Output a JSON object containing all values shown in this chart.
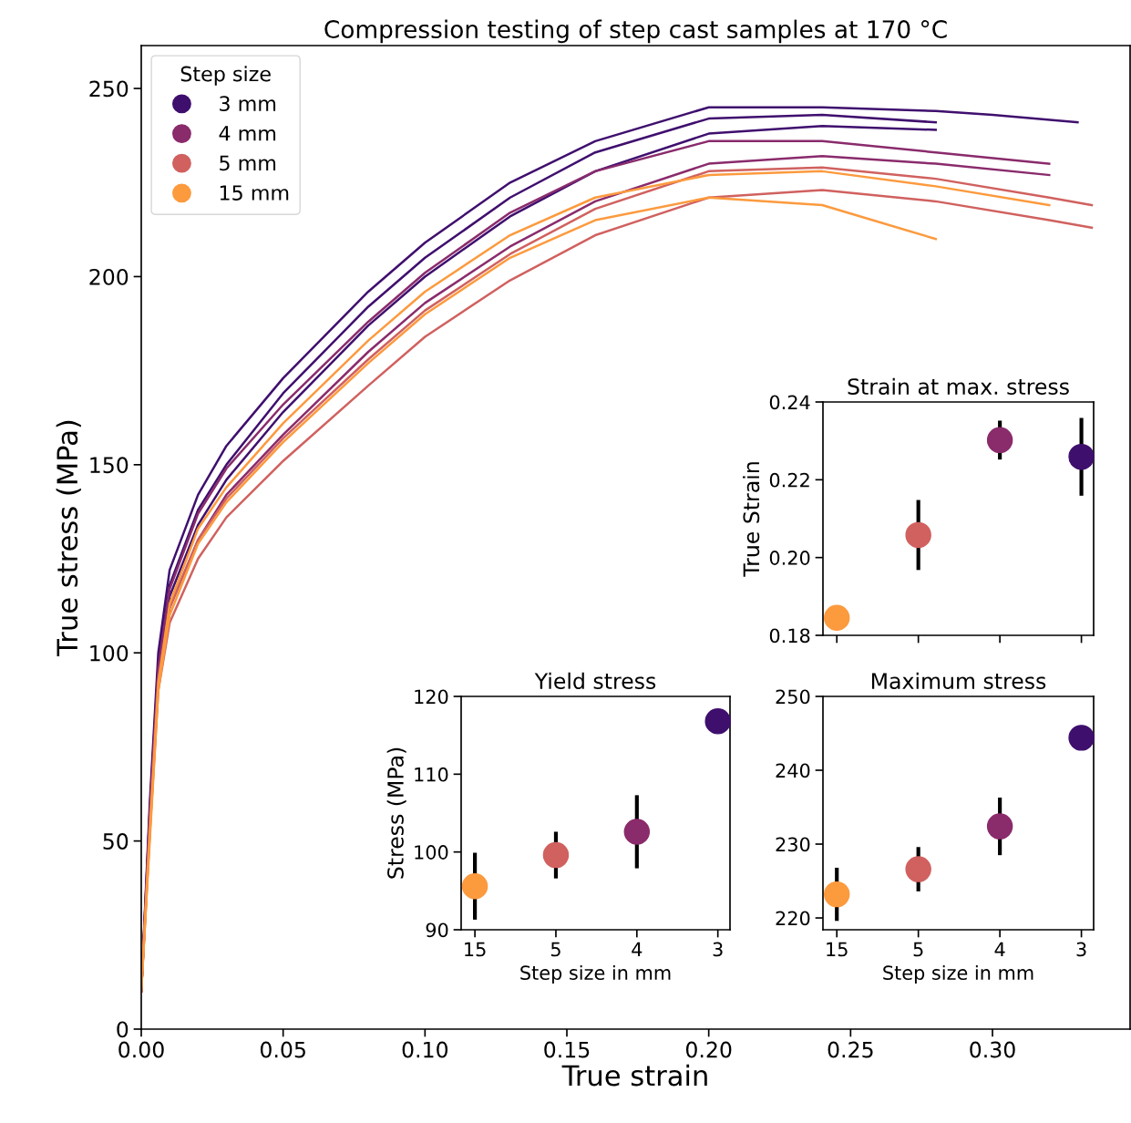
{
  "chart_data": [
    {
      "type": "line",
      "title": "Compression testing of step cast samples at 170 °C",
      "xlabel": "True strain",
      "ylabel": "True stress (MPa)",
      "legend_title": "Step size",
      "legend": "top left",
      "marker": "none",
      "line_style": "solid",
      "grid": false,
      "xlim": [
        0,
        0.3485
      ],
      "ylim": [
        0,
        261.4
      ],
      "xticks": [
        {
          "value": 0,
          "label": "0.00"
        },
        {
          "value": 0.05,
          "label": "0.05"
        },
        {
          "value": 0.1,
          "label": "0.10"
        },
        {
          "value": 0.15,
          "label": "0.15"
        },
        {
          "value": 0.2,
          "label": "0.20"
        },
        {
          "value": 0.25,
          "label": "0.25"
        },
        {
          "value": 0.3,
          "label": "0.30"
        }
      ],
      "yticks": [
        0,
        50,
        100,
        150,
        200,
        250
      ],
      "series": [
        {
          "name": "3 mm",
          "color": "#3f0f6e",
          "x": [
            0,
            0.003,
            0.006,
            0.01,
            0.02,
            0.03,
            0.05,
            0.08,
            0.1,
            0.13,
            0.16,
            0.2,
            0.24,
            0.28,
            0.3,
            0.33
          ],
          "values": [
            10,
            60,
            100,
            122,
            142,
            155,
            173,
            196,
            209,
            225,
            236,
            245,
            245,
            244,
            243,
            241
          ]
        },
        {
          "color": "#3f0f6e",
          "x": [
            0,
            0.003,
            0.006,
            0.01,
            0.02,
            0.03,
            0.05,
            0.08,
            0.1,
            0.13,
            0.16,
            0.2,
            0.24,
            0.28
          ],
          "values": [
            10,
            58,
            97,
            118,
            138,
            150,
            169,
            192,
            205,
            221,
            233,
            242,
            243,
            241
          ]
        },
        {
          "color": "#3f0f6e",
          "x": [
            0,
            0.003,
            0.006,
            0.01,
            0.02,
            0.03,
            0.05,
            0.08,
            0.1,
            0.13,
            0.16,
            0.2,
            0.24,
            0.28
          ],
          "values": [
            10,
            55,
            95,
            115,
            134,
            146,
            164,
            187,
            200,
            216,
            228,
            238,
            240,
            239
          ]
        },
        {
          "name": "4 mm",
          "color": "#8a2b6c",
          "x": [
            0,
            0.003,
            0.006,
            0.01,
            0.02,
            0.03,
            0.05,
            0.08,
            0.1,
            0.13,
            0.16,
            0.2,
            0.24,
            0.28,
            0.32
          ],
          "values": [
            10,
            57,
            96,
            117,
            137,
            149,
            166,
            188,
            201,
            217,
            228,
            236,
            236,
            233,
            230
          ]
        },
        {
          "color": "#8a2b6c",
          "x": [
            0,
            0.003,
            0.006,
            0.01,
            0.02,
            0.03,
            0.05,
            0.08,
            0.1,
            0.13,
            0.16,
            0.2,
            0.24,
            0.28,
            0.32
          ],
          "values": [
            10,
            54,
            92,
            112,
            130,
            142,
            158,
            180,
            193,
            208,
            220,
            230,
            232,
            230,
            227
          ]
        },
        {
          "name": "5 mm",
          "color": "#d0615f",
          "x": [
            0,
            0.003,
            0.006,
            0.01,
            0.02,
            0.03,
            0.05,
            0.08,
            0.1,
            0.13,
            0.16,
            0.2,
            0.24,
            0.28,
            0.32,
            0.335
          ],
          "values": [
            10,
            55,
            93,
            112,
            130,
            141,
            157,
            178,
            191,
            206,
            218,
            228,
            229,
            226,
            221,
            219
          ]
        },
        {
          "color": "#d0615f",
          "x": [
            0,
            0.003,
            0.006,
            0.01,
            0.02,
            0.03,
            0.05,
            0.08,
            0.1,
            0.13,
            0.16,
            0.2,
            0.24,
            0.28,
            0.32,
            0.335
          ],
          "values": [
            10,
            52,
            90,
            108,
            125,
            136,
            151,
            171,
            184,
            199,
            211,
            221,
            223,
            220,
            215,
            213
          ]
        },
        {
          "name": "15 mm",
          "color": "#fc9a3e",
          "x": [
            0,
            0.003,
            0.006,
            0.01,
            0.02,
            0.03,
            0.05,
            0.08,
            0.1,
            0.13,
            0.16,
            0.2,
            0.24,
            0.28,
            0.32
          ],
          "values": [
            10,
            52,
            92,
            113,
            133,
            144,
            161,
            183,
            196,
            211,
            221,
            227,
            228,
            224,
            219
          ]
        },
        {
          "color": "#fc9a3e",
          "x": [
            0,
            0.003,
            0.006,
            0.01,
            0.02,
            0.03,
            0.05,
            0.08,
            0.1,
            0.13,
            0.16,
            0.2,
            0.24,
            0.28
          ],
          "values": [
            10,
            50,
            90,
            110,
            129,
            140,
            156,
            177,
            190,
            205,
            215,
            221,
            219,
            210
          ]
        }
      ]
    },
    {
      "type": "scatter",
      "title": "Strain at max. stress",
      "ylabel": "True Strain",
      "tick_labels": "y",
      "marker": "circle",
      "categories": [
        "15",
        "5",
        "4",
        "3"
      ],
      "values": [
        0.1845,
        0.2058,
        0.2302,
        0.2259
      ],
      "errors": [
        null,
        0.009,
        0.005,
        0.01
      ],
      "colors": [
        "#fc9a3e",
        "#d0615f",
        "#8a2b6c",
        "#3f0f6e"
      ],
      "ylim": [
        0.18,
        0.24
      ],
      "yticks": [
        {
          "value": 0.18,
          "label": "0.18"
        },
        {
          "value": 0.2,
          "label": "0.20"
        },
        {
          "value": 0.22,
          "label": "0.22"
        },
        {
          "value": 0.24,
          "label": "0.24"
        }
      ]
    },
    {
      "type": "scatter",
      "title": "Yield stress",
      "xlabel": "Step size in mm",
      "ylabel": "Stress (MPa)",
      "marker": "circle",
      "categories": [
        "15",
        "5",
        "4",
        "3"
      ],
      "values": [
        95.6,
        99.6,
        102.6,
        116.8
      ],
      "errors": [
        4.3,
        3,
        4.7,
        null
      ],
      "colors": [
        "#fc9a3e",
        "#d0615f",
        "#8a2b6c",
        "#3f0f6e"
      ],
      "ylim": [
        90,
        120
      ],
      "yticks": [
        90,
        100,
        110,
        120
      ]
    },
    {
      "type": "scatter",
      "title": "Maximum stress",
      "xlabel": "Step size in mm",
      "marker": "circle",
      "categories": [
        "15",
        "5",
        "4",
        "3"
      ],
      "values": [
        223.2,
        226.6,
        232.4,
        244.4
      ],
      "errors": [
        3.6,
        3,
        3.9,
        null
      ],
      "colors": [
        "#fc9a3e",
        "#d0615f",
        "#8a2b6c",
        "#3f0f6e"
      ],
      "ylim": [
        218.4,
        250
      ],
      "yticks": [
        220,
        230,
        240,
        250
      ]
    }
  ]
}
